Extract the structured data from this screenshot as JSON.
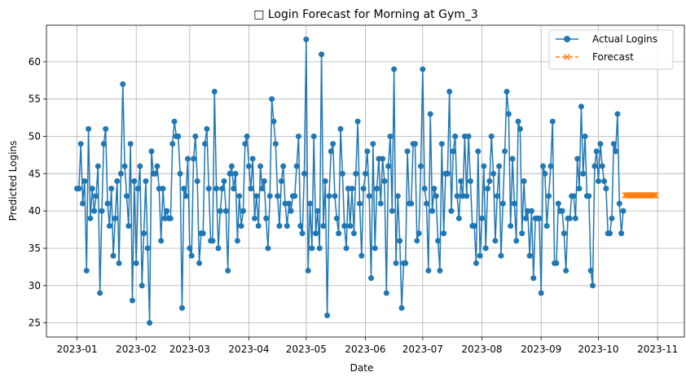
{
  "chart_data": {
    "type": "line",
    "title": "□ Login Forecast for Morning at Gym_3",
    "xlabel": "Date",
    "ylabel": "Predicted Logins",
    "x_axis": {
      "start": "2023-01-01",
      "ticks": [
        "2023-01",
        "2023-02",
        "2023-03",
        "2023-04",
        "2023-05",
        "2023-06",
        "2023-07",
        "2023-08",
        "2023-09",
        "2023-10",
        "2023-11"
      ],
      "tick_dates": [
        "2023-01-01",
        "2023-02-01",
        "2023-03-01",
        "2023-04-01",
        "2023-05-01",
        "2023-06-01",
        "2023-07-01",
        "2023-08-01",
        "2023-09-01",
        "2023-10-01",
        "2023-11-01"
      ],
      "range": [
        "2022-12-16",
        "2023-11-15"
      ]
    },
    "y_axis": {
      "ticks": [
        25,
        30,
        35,
        40,
        45,
        50,
        55,
        60
      ],
      "range": [
        23.1,
        64.9
      ]
    },
    "grid": true,
    "legend": {
      "position": "top-right"
    },
    "series": [
      {
        "name": "Actual Logins",
        "color": "#1f77b4",
        "marker": "circle",
        "style": "solid",
        "daily_start": "2023-01-01",
        "values": [
          43,
          43,
          49,
          41,
          44,
          32,
          51,
          39,
          43,
          40,
          42,
          46,
          29,
          40,
          49,
          51,
          41,
          38,
          43,
          34,
          39,
          44,
          33,
          45,
          57,
          46,
          42,
          38,
          49,
          28,
          44,
          33,
          43,
          46,
          30,
          37,
          44,
          35,
          25,
          48,
          45,
          45,
          46,
          43,
          36,
          43,
          39,
          40,
          39,
          39,
          49,
          52,
          50,
          50,
          45,
          27,
          43,
          42,
          47,
          35,
          34,
          47,
          50,
          44,
          33,
          37,
          37,
          49,
          51,
          43,
          36,
          36,
          56,
          43,
          35,
          40,
          43,
          44,
          40,
          32,
          45,
          46,
          43,
          45,
          36,
          42,
          38,
          40,
          49,
          50,
          46,
          43,
          47,
          39,
          42,
          38,
          46,
          43,
          44,
          39,
          35,
          42,
          55,
          52,
          49,
          42,
          38,
          44,
          46,
          41,
          38,
          41,
          40,
          42,
          42,
          46,
          50,
          38,
          37,
          45,
          63,
          32,
          41,
          35,
          50,
          37,
          40,
          35,
          61,
          38,
          44,
          26,
          42,
          48,
          49,
          42,
          39,
          37,
          51,
          45,
          38,
          35,
          43,
          38,
          43,
          37,
          45,
          52,
          41,
          34,
          43,
          45,
          48,
          42,
          31,
          49,
          35,
          43,
          47,
          41,
          47,
          44,
          29,
          46,
          50,
          40,
          59,
          33,
          42,
          36,
          27,
          33,
          33,
          48,
          41,
          41,
          49,
          49,
          36,
          37,
          46,
          59,
          43,
          41,
          32,
          53,
          40,
          43,
          42,
          36,
          32,
          49,
          37,
          45,
          45,
          56,
          40,
          48,
          50,
          42,
          39,
          44,
          42,
          50,
          42,
          50,
          44,
          38,
          38,
          33,
          48,
          34,
          39,
          46,
          35,
          43,
          44,
          50,
          45,
          36,
          42,
          46,
          34,
          41,
          48,
          56,
          53,
          38,
          47,
          41,
          36,
          52,
          51,
          37,
          44,
          39,
          40,
          34,
          40,
          31,
          39,
          39,
          39,
          29,
          46,
          45,
          38,
          42,
          46,
          52,
          33,
          33,
          41,
          40,
          40,
          37,
          32,
          39,
          39,
          42,
          42,
          39,
          47,
          43,
          54,
          45,
          50,
          42,
          42,
          32,
          30,
          46,
          48,
          44,
          49,
          46,
          44,
          43,
          37,
          37,
          39,
          49,
          48,
          53,
          41,
          37,
          40
        ]
      },
      {
        "name": "Forecast",
        "color": "#ff7f0e",
        "marker": "x",
        "style": "dashed",
        "daily_start": "2023-10-15",
        "values": [
          42.1,
          42.1,
          42.1,
          42.1,
          42.1,
          42.1,
          42.1,
          42.1,
          42.1,
          42.1,
          42.1,
          42.1,
          42.1,
          42.1,
          42.1,
          42.1,
          42.1
        ]
      }
    ]
  }
}
